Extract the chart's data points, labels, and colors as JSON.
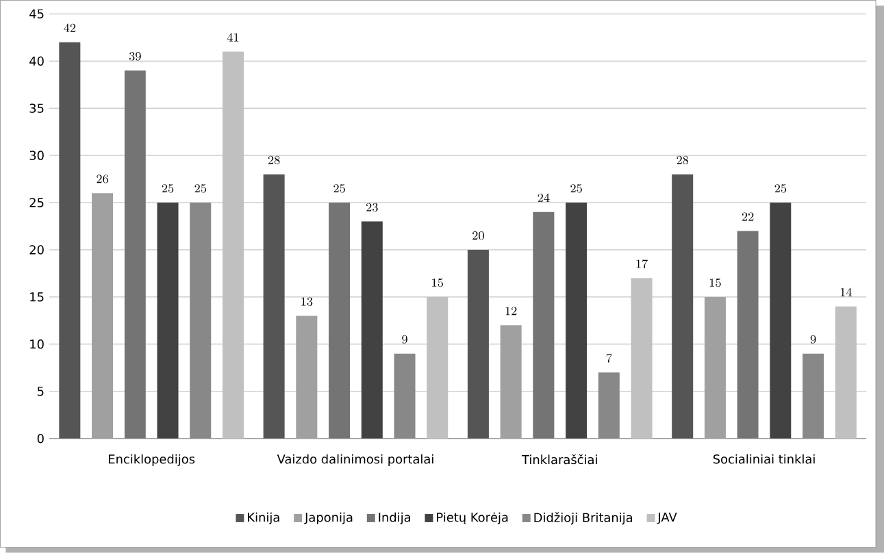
{
  "chart_data": {
    "type": "bar",
    "categories": [
      "Enciklopedijos",
      "Vaizdo dalinimosi portalai",
      "Tinklaraščiai",
      "Socialiniai tinklai"
    ],
    "series": [
      {
        "name": "Kinija",
        "color": "#555555",
        "values": [
          42,
          28,
          20,
          28
        ]
      },
      {
        "name": "Japonija",
        "color": "#a0a0a0",
        "values": [
          26,
          13,
          12,
          15
        ]
      },
      {
        "name": "Indija",
        "color": "#747474",
        "values": [
          39,
          25,
          24,
          22
        ]
      },
      {
        "name": "Pietų Korėja",
        "color": "#424242",
        "values": [
          25,
          23,
          25,
          25
        ]
      },
      {
        "name": "Didžioji Britanija",
        "color": "#888888",
        "values": [
          25,
          9,
          7,
          9
        ]
      },
      {
        "name": "JAV",
        "color": "#c0c0c0",
        "values": [
          41,
          15,
          17,
          14
        ]
      }
    ],
    "ylim": [
      0,
      45
    ],
    "yticks": [
      0,
      5,
      10,
      15,
      20,
      25,
      30,
      35,
      40,
      45
    ],
    "grid": "y",
    "legend": "bottom",
    "data_labels": true
  }
}
